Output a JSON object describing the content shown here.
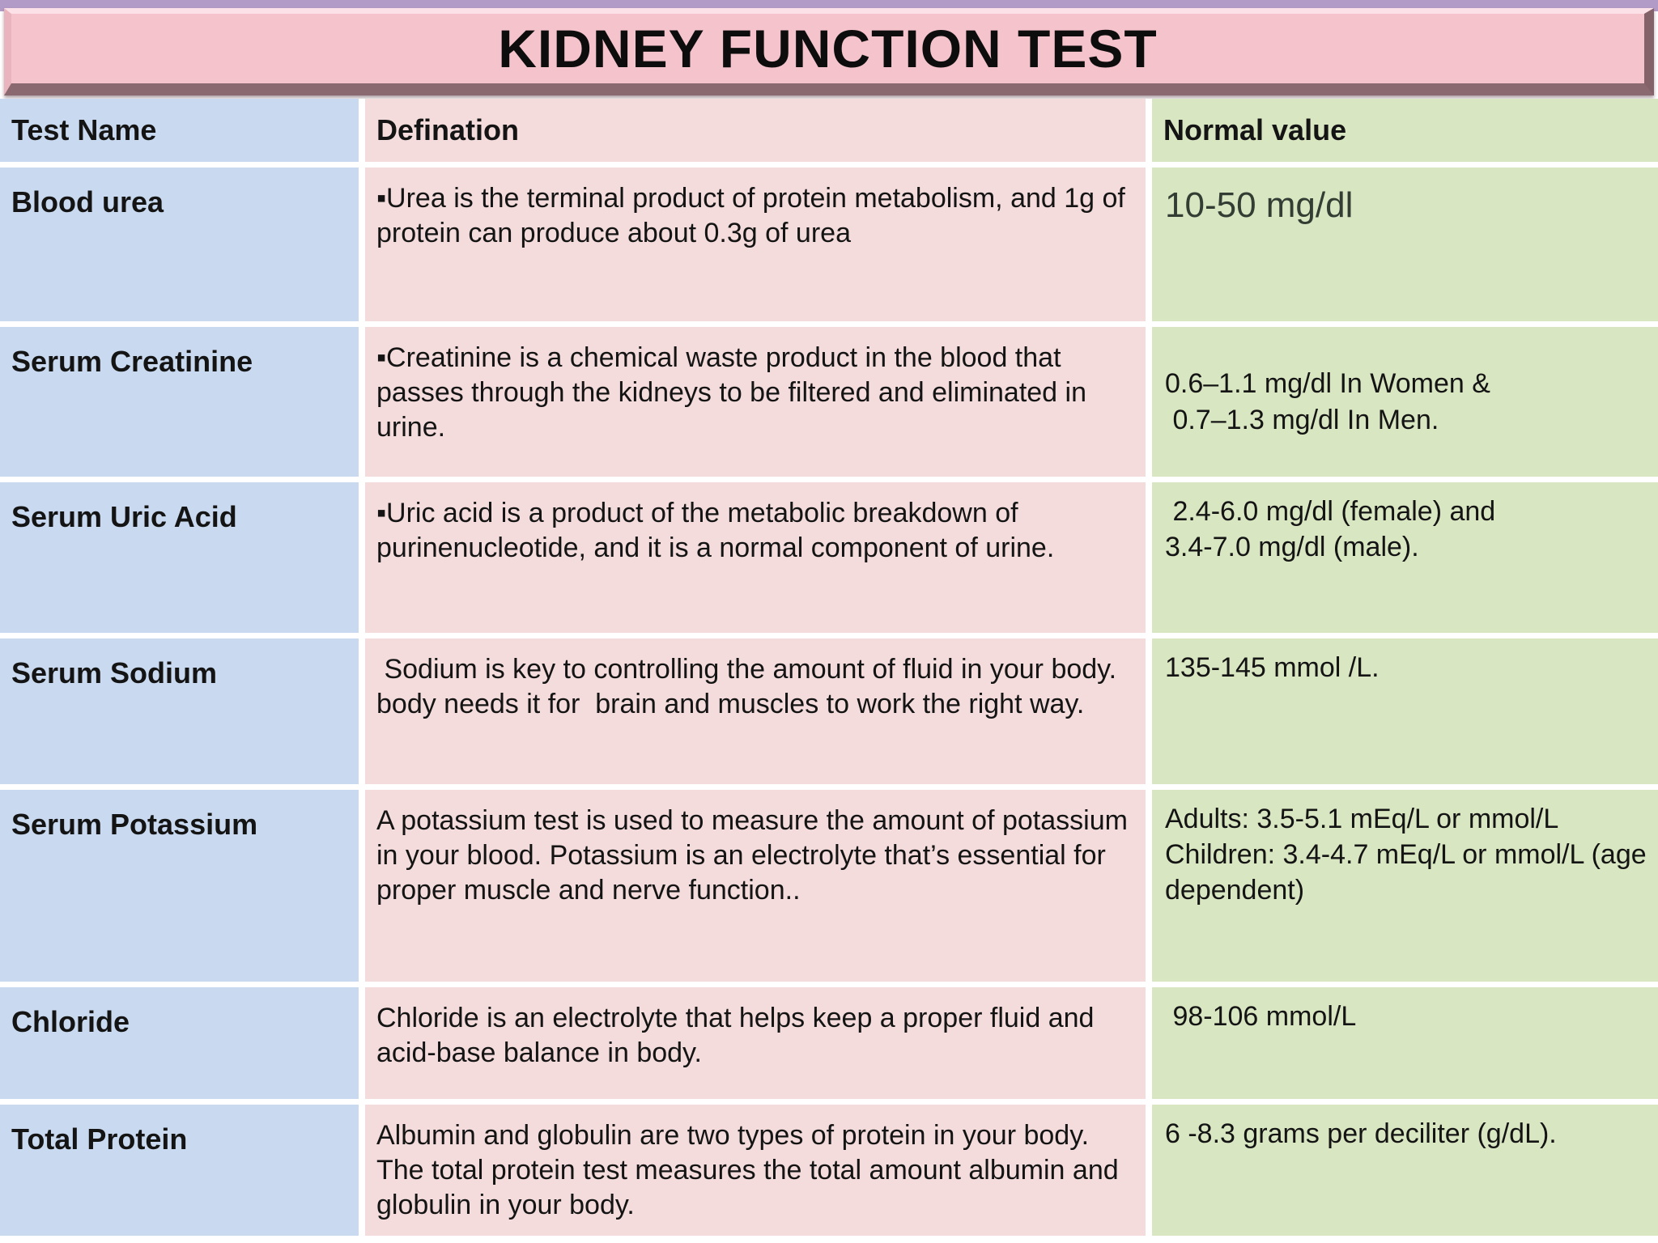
{
  "title": "KIDNEY FUNCTION TEST",
  "table": {
    "headers": [
      "Test Name",
      "Defination",
      "Normal value"
    ],
    "rows": [
      {
        "test_name": "Blood urea",
        "definition": "▪Urea is the terminal product of protein metabolism, and 1g of protein can produce about 0.3g of urea",
        "normal_value": "10-50 mg/dl"
      },
      {
        "test_name": "Serum Creatinine",
        "definition": "▪Creatinine is a chemical waste product in the blood that passes through the kidneys to be filtered and eliminated in urine.",
        "normal_value": "0.6–1.1 mg/dl In Women &\n 0.7–1.3 mg/dl In Men."
      },
      {
        "test_name": "Serum Uric Acid",
        "definition": "▪Uric acid is a product of the metabolic breakdown of purinenucleotide, and it is a normal component of urine.",
        "normal_value": " 2.4-6.0 mg/dl (female) and\n3.4-7.0 mg/dl (male)."
      },
      {
        "test_name": "Serum Sodium",
        "definition": " Sodium is key to controlling the amount of fluid in your body. body needs it for  brain and muscles to work the right way.",
        "normal_value": "135-145 mmol /L."
      },
      {
        "test_name": "Serum Potassium",
        "definition": "A potassium test is used to measure the amount of potassium in your blood. Potassium is an electrolyte that’s essential for proper muscle and nerve function..",
        "normal_value": "Adults: 3.5-5.1 mEq/L or mmol/L\nChildren: 3.4-4.7 mEq/L or mmol/L (age dependent)"
      },
      {
        "test_name": "Chloride",
        "definition": "Chloride is an electrolyte that helps keep a proper fluid and acid-base balance in body.",
        "normal_value": " 98-106 mmol/L"
      },
      {
        "test_name": "Total Protein",
        "definition": "Albumin and globulin are two types of protein in your body. The total protein test measures the total amount albumin and globulin in your body.",
        "normal_value": "6 -8.3 grams per deciliter (g/dL)."
      }
    ]
  },
  "colors": {
    "banner_pink": "#f5c3cb",
    "top_strip_purple": "#b29bc7",
    "test_name_column_blue": "#c9daf0",
    "definition_column_pink": "#f3dcdb",
    "normal_value_column_green": "#d9e6c2"
  }
}
